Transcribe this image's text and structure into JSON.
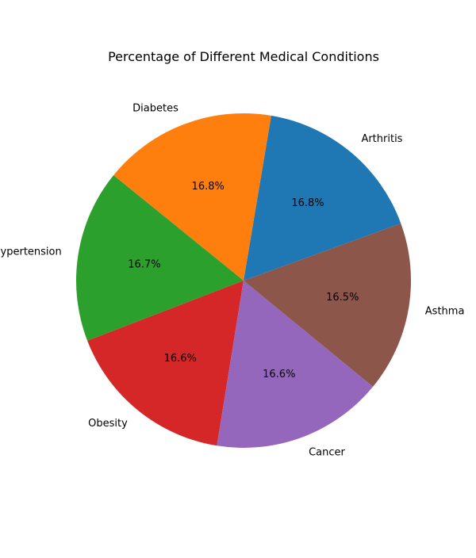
{
  "chart_data": {
    "type": "pie",
    "title": "Percentage of Different Medical Conditions",
    "start_angle_deg": 20,
    "direction": "counterclockwise",
    "legend": "none",
    "slices": [
      {
        "label": "Arthritis",
        "value": 16.8,
        "pct_label": "16.8%",
        "color": "#1f77b4"
      },
      {
        "label": "Diabetes",
        "value": 16.8,
        "pct_label": "16.8%",
        "color": "#ff7f0e"
      },
      {
        "label": "Hypertension",
        "value": 16.7,
        "pct_label": "16.7%",
        "color": "#2ca02c"
      },
      {
        "label": "Obesity",
        "value": 16.6,
        "pct_label": "16.6%",
        "color": "#d62728"
      },
      {
        "label": "Cancer",
        "value": 16.6,
        "pct_label": "16.6%",
        "color": "#9467bd"
      },
      {
        "label": "Asthma",
        "value": 16.5,
        "pct_label": "16.5%",
        "color": "#8c564b"
      }
    ]
  }
}
